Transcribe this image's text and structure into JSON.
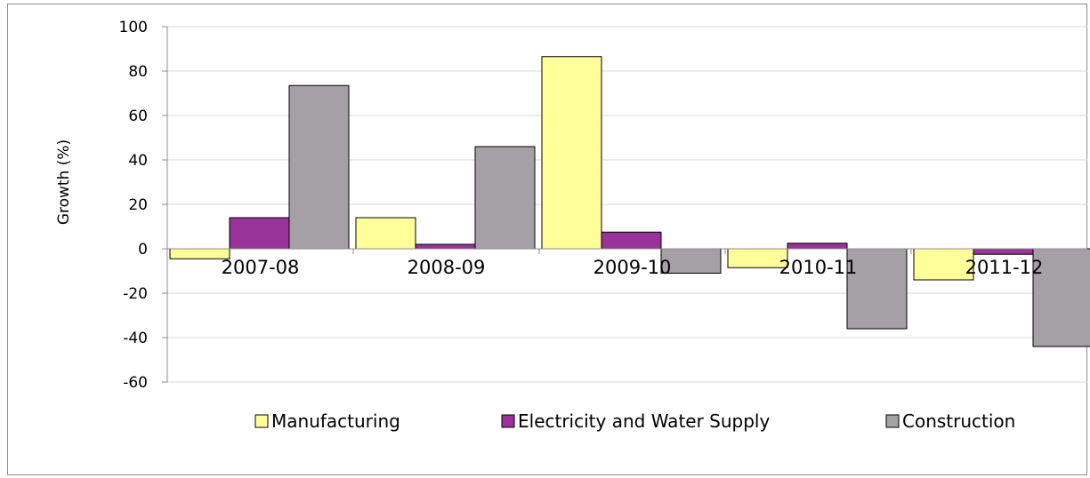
{
  "chart_data": {
    "type": "bar",
    "title": "",
    "xlabel": "",
    "ylabel": "Growth (%)",
    "ylim": [
      -60,
      100
    ],
    "yticks": [
      100,
      80,
      60,
      40,
      20,
      0,
      -20,
      -40,
      -60
    ],
    "grid": true,
    "legend_position": "bottom",
    "categories": [
      "2007-08",
      "2008-09",
      "2009-10",
      "2010-11",
      "2011-12"
    ],
    "series": [
      {
        "name": "Manufacturing",
        "color": "#ffff99",
        "values": [
          -4.5,
          14,
          86.5,
          -8.5,
          -14
        ]
      },
      {
        "name": "Electricity and Water Supply",
        "color": "#993399",
        "values": [
          14,
          2,
          7.5,
          2.5,
          -2.5
        ]
      },
      {
        "name": "Construction",
        "color": "#a59fa6",
        "values": [
          73.5,
          46,
          -11,
          -36,
          -44
        ]
      }
    ]
  }
}
